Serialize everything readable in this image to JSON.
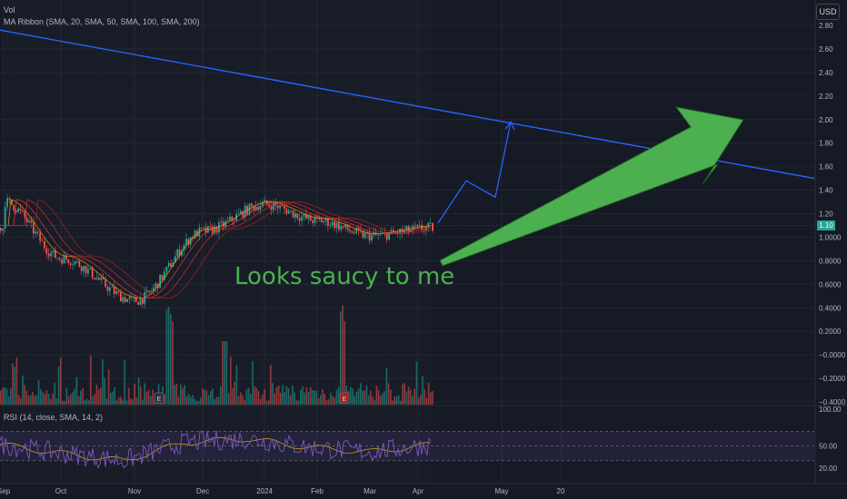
{
  "legend": {
    "vol": "Vol",
    "ma_ribbon": "MA Ribbon (SMA, 20, SMA, 50, SMA, 100, SMA, 200)",
    "rsi": "RSI (14, close, SMA, 14, 2)"
  },
  "currency": "USD",
  "last_price_label": "1.10",
  "annotation": "Looks saucy to me",
  "colors": {
    "background": "#161a25",
    "trendline": "#2962ff",
    "arrow": "#4caf50",
    "annotation_text": "#4caf50",
    "up": "#26a69a",
    "down": "#ef5350",
    "rsi_line": "#7e57c2"
  },
  "chart_data": [
    {
      "type": "line",
      "panel": "price",
      "y_axis_ticks": [
        "2.80",
        "2.60",
        "2.40",
        "2.20",
        "2.00",
        "1.80",
        "1.60",
        "1.40",
        "1.20",
        "1.0000",
        "0.8000",
        "0.6000",
        "0.4000",
        "0.2000",
        "−0.0000",
        "−0.2000",
        "−0.4000"
      ],
      "x_axis_ticks": [
        "Sep",
        "Oct",
        "Nov",
        "Dec",
        "2024",
        "Feb",
        "Mar",
        "Apr",
        "May",
        "20"
      ],
      "series": [
        {
          "role": "price",
          "x": [
            "Sep",
            "Oct",
            "Nov",
            "Dec",
            "2024",
            "Feb",
            "Mar",
            "Apr"
          ],
          "y": [
            1.3,
            0.82,
            0.46,
            1.05,
            1.28,
            1.14,
            1.01,
            1.08
          ]
        },
        {
          "role": "trendline",
          "x": [
            "Sep",
            "May",
            "20"
          ],
          "y": [
            2.76,
            2.0,
            1.5
          ]
        },
        {
          "role": "projection",
          "x": [
            "Apr",
            "Apr+",
            "Apr++",
            "May"
          ],
          "y": [
            1.12,
            1.48,
            1.34,
            1.98
          ]
        }
      ],
      "ylim": [
        -0.4,
        2.8
      ]
    },
    {
      "type": "line",
      "panel": "rsi",
      "y_axis_ticks": [
        "100.00",
        "50.00",
        "20.00"
      ],
      "levels": [
        70,
        50,
        30
      ],
      "values": [
        52,
        40,
        30,
        55,
        60,
        48,
        42,
        52
      ]
    }
  ]
}
